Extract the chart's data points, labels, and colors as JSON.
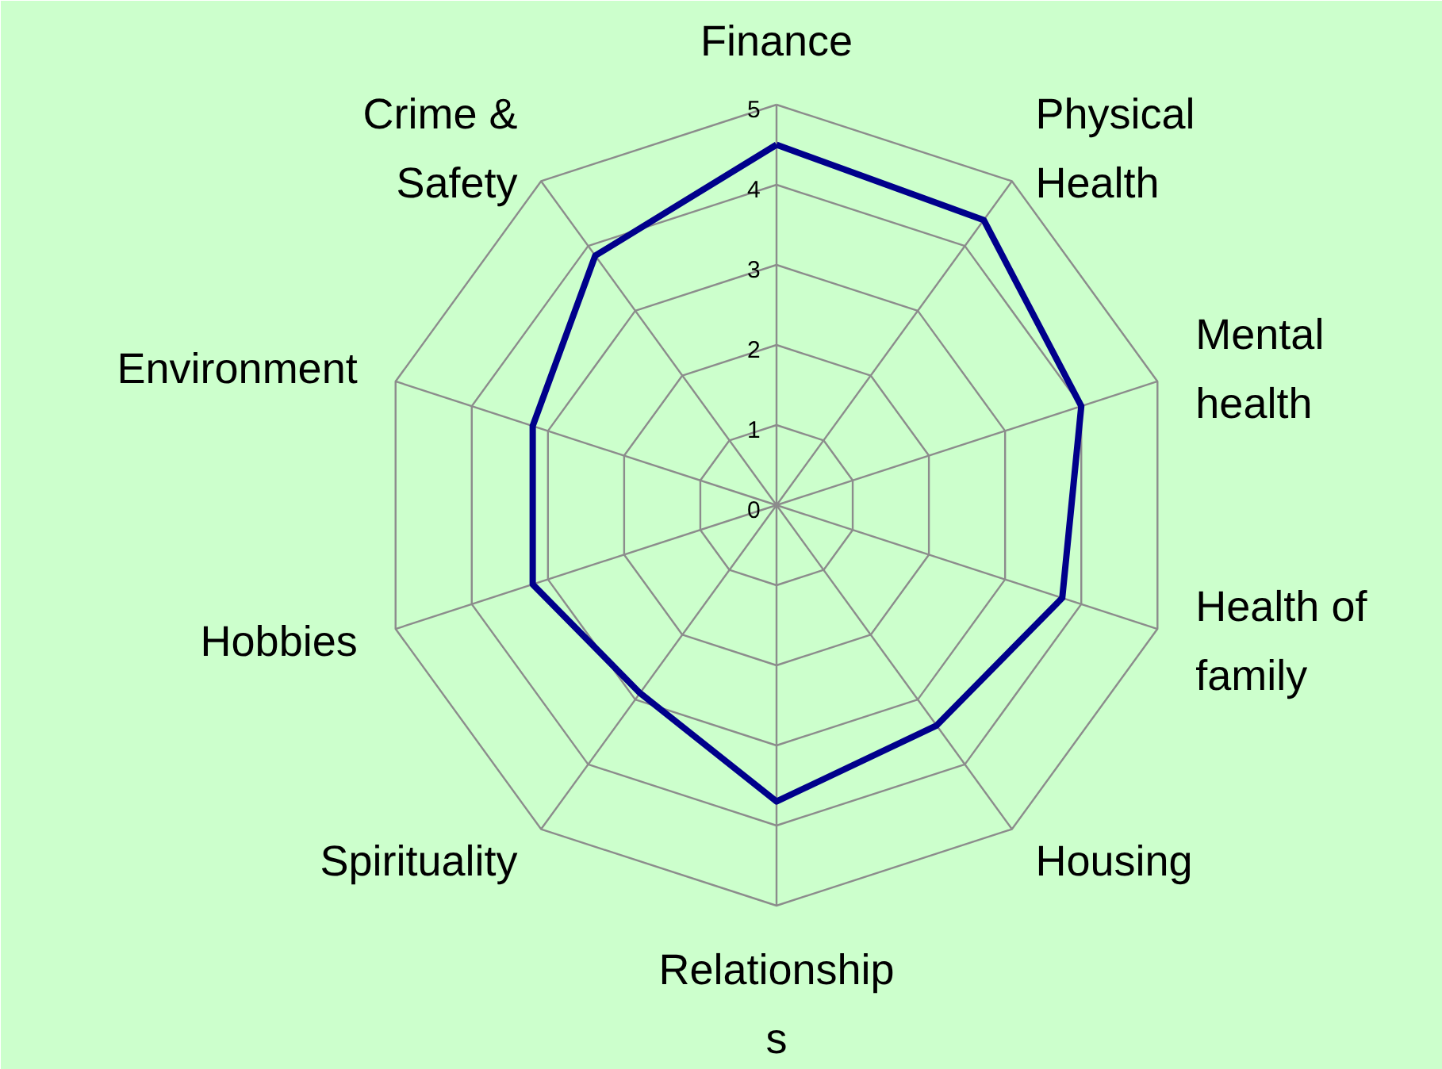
{
  "chart_data": {
    "type": "radar",
    "categories": [
      "Finance",
      "Physical\nHealth",
      "Mental\nhealth",
      "Health of\nfamily",
      "Housing",
      "Relationship\ns",
      "Spirituality",
      "Hobbies",
      "Environment",
      "Crime &\nSafety"
    ],
    "series": [
      {
        "color": "#00008b",
        "values": [
          4.5,
          4.4,
          4,
          3.75,
          3.4,
          3.7,
          2.9,
          3.2,
          3.2,
          3.85
        ]
      }
    ],
    "ylim": [
      0,
      5
    ],
    "yticks": [
      0,
      1,
      2,
      3,
      4,
      5
    ],
    "grid": true,
    "marker": "none",
    "line_style": "solid"
  }
}
